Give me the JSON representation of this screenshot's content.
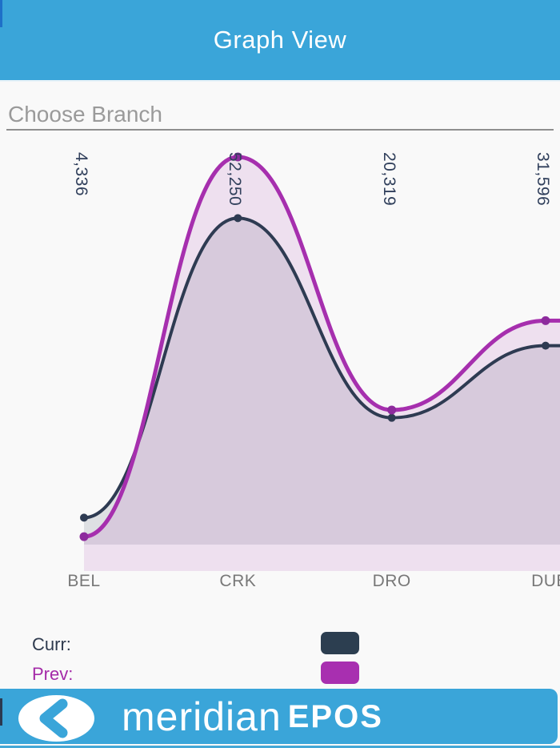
{
  "header": {
    "title": "Graph View"
  },
  "branch_selector": {
    "placeholder": "Choose Branch"
  },
  "chart_data": {
    "type": "area",
    "categories": [
      "BEL",
      "CRK",
      "DRO",
      "DUB"
    ],
    "series": [
      {
        "name": "Curr",
        "color": "#2e3b52",
        "fill": "rgba(46,59,82,0.13)",
        "dot_color": "#2e3b52",
        "line_width": 4,
        "values": [
          3400,
          41200,
          16000,
          25100
        ]
      },
      {
        "name": "Prev",
        "color": "#a62fae",
        "fill": "rgba(166,47,174,0.12)",
        "dot_color": "#8d2b9d",
        "line_width": 5,
        "values": [
          4336,
          52250,
          20319,
          31596
        ]
      }
    ],
    "point_labels": [
      "4,336",
      "52,250",
      "20,319",
      "31,596"
    ],
    "ylim": [
      0,
      55000
    ],
    "grid": false,
    "legend_position": "bottom",
    "smooth": true
  },
  "legend": {
    "curr_label": "Curr:",
    "prev_label": "Prev:",
    "curr_color": "#2c3e50",
    "prev_color": "#a82fb0"
  },
  "footer": {
    "brand_light": "meridian",
    "brand_bold": "EPOS"
  },
  "colors": {
    "accent_blue": "#3aa5d9"
  }
}
